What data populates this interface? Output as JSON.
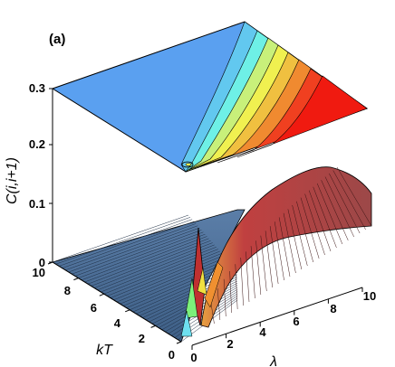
{
  "chart_data": {
    "type": "surface-3d",
    "panel_label": "(a)",
    "zlabel": "C(i,i+1)",
    "xlabel": "λ",
    "ylabel": "kT",
    "x_ticks": [
      "0",
      "2",
      "4",
      "6",
      "8",
      "10"
    ],
    "y_ticks": [
      "0",
      "2",
      "4",
      "6",
      "8",
      "10"
    ],
    "z_ticks": [
      "0",
      "0.1",
      "0.2",
      "0.3"
    ],
    "xlim": [
      0,
      10
    ],
    "ylim": [
      0,
      10
    ],
    "zlim": [
      0,
      0.3
    ],
    "colors": {
      "low": "#5aa0f0",
      "surface_flat": "#4a6f9a",
      "surface_peak": "#b24a4a",
      "contours": [
        "#5aa0f0",
        "#62c8ef",
        "#6ef0e6",
        "#c8f07a",
        "#f0f050",
        "#f0c040",
        "#f08a30",
        "#f04020",
        "#f01a10"
      ]
    },
    "projection_plane": "top contour map at z = 0.3",
    "grid": false
  }
}
